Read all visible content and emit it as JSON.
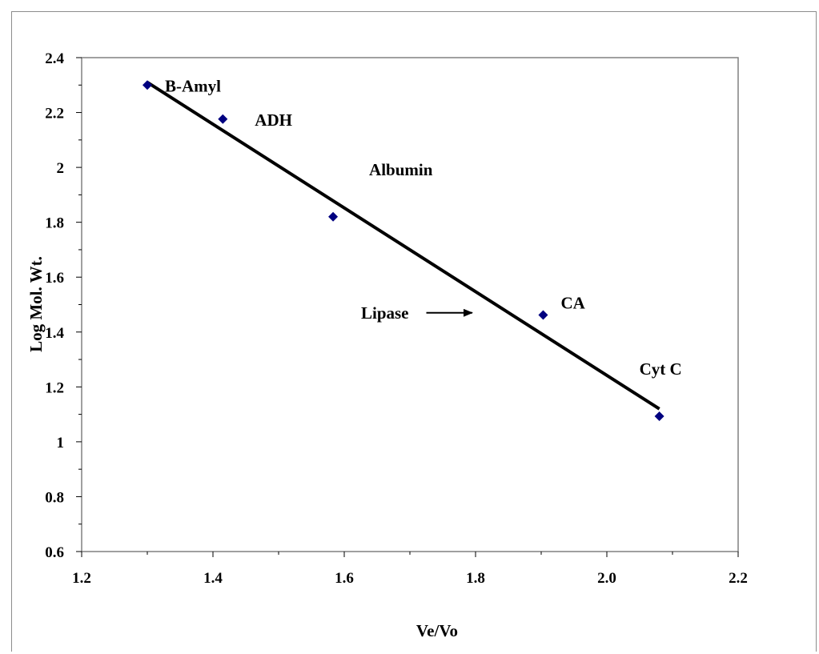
{
  "chart_data": {
    "type": "scatter",
    "title": "",
    "xlabel": "Ve/Vo",
    "ylabel": "Log Mol. Wt.",
    "xlim": [
      1.2,
      2.2
    ],
    "ylim": [
      0.6,
      2.4
    ],
    "x_ticks": [
      "1.2",
      "1.4",
      "1.6",
      "1.8",
      "2.0",
      "2.2"
    ],
    "y_ticks": [
      "0.6",
      "0.8",
      "1",
      "1.2",
      "1.4",
      "1.6",
      "1.8",
      "2",
      "2.2",
      "2.4"
    ],
    "grid": false,
    "legend": false,
    "marker_color": "#000080",
    "points": [
      {
        "x": 1.3,
        "y": 2.3,
        "label": "B-Amyl"
      },
      {
        "x": 1.415,
        "y": 2.176,
        "label": "ADH"
      },
      {
        "x": 1.583,
        "y": 1.82,
        "label": "Albumin"
      },
      {
        "x": 1.903,
        "y": 1.462,
        "label": "CA"
      },
      {
        "x": 2.08,
        "y": 1.093,
        "label": "Cyt C"
      }
    ],
    "trendline": {
      "x": [
        1.3,
        2.08
      ],
      "y": [
        2.31,
        1.12
      ],
      "color": "#000000"
    },
    "annotation": {
      "text": "Lipase",
      "arrow": true,
      "arrow_x": [
        1.725,
        1.795
      ],
      "arrow_y": 1.47
    }
  }
}
